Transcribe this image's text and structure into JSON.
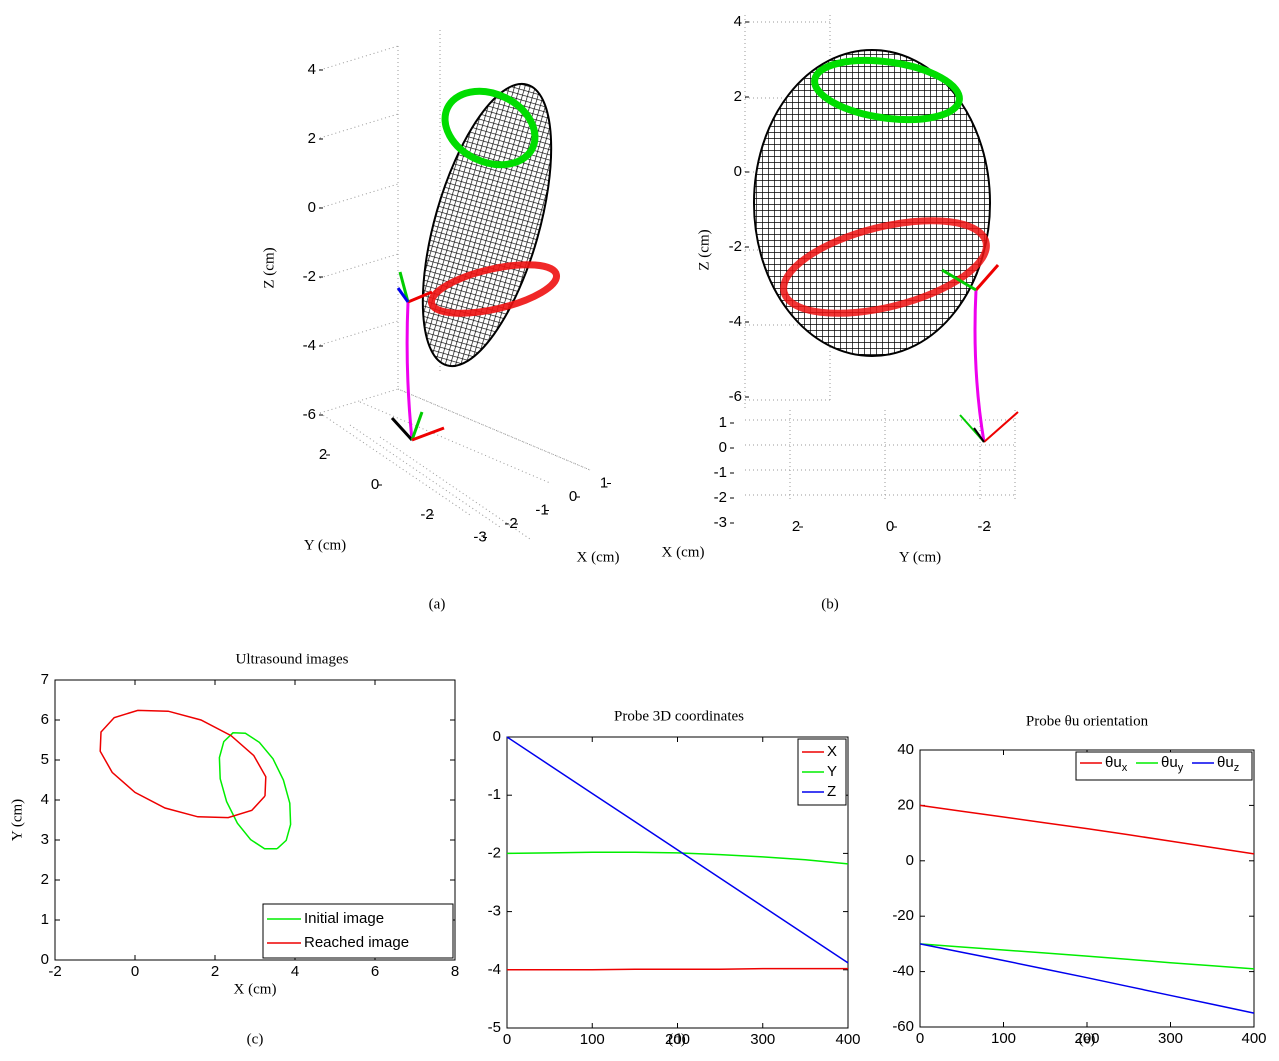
{
  "chart_data": [
    {
      "type": "surface3d",
      "caption": "(a)",
      "xlabel": "X (cm)",
      "ylabel": "Y (cm)",
      "zlabel": "Z (cm)",
      "xticks": [
        1,
        0,
        -1,
        -2,
        -3
      ],
      "yticks": [
        2,
        0,
        -2
      ],
      "zticks": [
        4,
        2,
        0,
        -2,
        -4,
        -6
      ]
    },
    {
      "type": "surface3d",
      "caption": "(b)",
      "xlabel": "X (cm)",
      "ylabel": "Y (cm)",
      "zlabel": "Z (cm)",
      "xticks": [
        1,
        0,
        -1,
        -2,
        -3
      ],
      "yticks": [
        2,
        0,
        -2
      ],
      "zticks": [
        4,
        2,
        0,
        -2,
        -4,
        -6
      ]
    },
    {
      "type": "line",
      "title": "Ultrasound images",
      "caption": "(c)",
      "xlabel": "X (cm)",
      "ylabel": "Y (cm)",
      "xlim": [
        -2,
        8
      ],
      "xticks": [
        -2,
        0,
        2,
        4,
        6,
        8
      ],
      "ylim": [
        0,
        7
      ],
      "yticks": [
        0,
        1,
        2,
        3,
        4,
        5,
        6,
        7
      ],
      "legend": "lower right",
      "series": [
        {
          "name": "Initial image",
          "color": "#00ee00",
          "x": [
            3.55,
            3.78,
            3.89,
            3.87,
            3.71,
            3.45,
            3.11,
            2.76,
            2.45,
            2.22,
            2.11,
            2.13,
            2.29,
            2.56,
            2.89,
            3.24,
            3.55
          ],
          "values": [
            2.78,
            2.99,
            3.39,
            3.92,
            4.5,
            5.03,
            5.44,
            5.67,
            5.68,
            5.46,
            5.06,
            4.53,
            3.96,
            3.42,
            3.01,
            2.78,
            2.78
          ]
        },
        {
          "name": "Reached image",
          "color": "#ee0000",
          "x": [
            3.25,
            3.27,
            2.97,
            2.4,
            1.65,
            0.83,
            0.07,
            -0.52,
            -0.85,
            -0.87,
            -0.57,
            0.0,
            0.75,
            1.57,
            2.33,
            2.92,
            3.25
          ],
          "values": [
            4.1,
            4.58,
            5.11,
            5.61,
            6.0,
            6.22,
            6.24,
            6.06,
            5.7,
            5.22,
            4.69,
            4.19,
            3.8,
            3.58,
            3.56,
            3.74,
            4.1
          ]
        }
      ]
    },
    {
      "type": "line",
      "title": "Probe 3D coordinates",
      "caption": "(d)",
      "x": [
        0,
        50,
        100,
        150,
        200,
        250,
        300,
        350,
        400
      ],
      "xlim": [
        0,
        400
      ],
      "xticks": [
        0,
        100,
        200,
        300,
        400
      ],
      "ylim": [
        -5,
        0
      ],
      "yticks": [
        -5,
        -4,
        -3,
        -2,
        -1,
        0
      ],
      "legend": "upper right",
      "series": [
        {
          "name": "X",
          "color": "#ee0000",
          "values": [
            -4,
            -4,
            -4,
            -3.99,
            -3.99,
            -3.99,
            -3.98,
            -3.98,
            -3.98
          ]
        },
        {
          "name": "Y",
          "color": "#00ee00",
          "values": [
            -2,
            -1.99,
            -1.98,
            -1.98,
            -1.99,
            -2.02,
            -2.06,
            -2.11,
            -2.18
          ]
        },
        {
          "name": "Z",
          "color": "#0000ee",
          "values": [
            0,
            -0.485,
            -0.97,
            -1.455,
            -1.94,
            -2.425,
            -2.91,
            -3.395,
            -3.88
          ]
        }
      ]
    },
    {
      "type": "line",
      "title": "Probe θu orientation",
      "caption": "(e)",
      "x": [
        0,
        50,
        100,
        150,
        200,
        250,
        300,
        350,
        400
      ],
      "xlim": [
        0,
        400
      ],
      "xticks": [
        0,
        100,
        200,
        300,
        400
      ],
      "ylim": [
        -60,
        40
      ],
      "yticks": [
        -60,
        -40,
        -20,
        0,
        20,
        40
      ],
      "legend": "upper right",
      "legend_orientation": "horizontal",
      "series": [
        {
          "name": "θux",
          "color": "#ee0000",
          "values": [
            20,
            17.9,
            15.8,
            13.7,
            11.6,
            9.4,
            7.1,
            4.8,
            2.5
          ]
        },
        {
          "name": "θuy",
          "color": "#00ee00",
          "values": [
            -30,
            -31.1,
            -32.2,
            -33.3,
            -34.4,
            -35.6,
            -36.8,
            -37.9,
            -39
          ]
        },
        {
          "name": "θuz",
          "color": "#0000ee",
          "values": [
            -30,
            -33,
            -36,
            -39.1,
            -42.2,
            -45.4,
            -48.6,
            -51.8,
            -55
          ]
        }
      ]
    }
  ]
}
